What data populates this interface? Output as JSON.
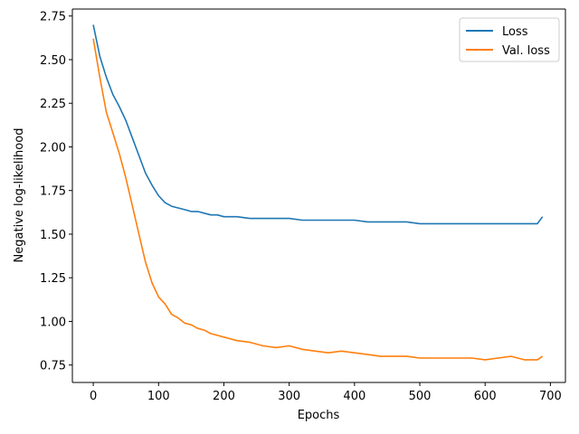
{
  "chart_data": {
    "type": "line",
    "title": "",
    "xlabel": "Epochs",
    "ylabel": "Negative log-likelihood",
    "xlim": [
      -32,
      723
    ],
    "ylim": [
      0.65,
      2.79
    ],
    "x_ticks": [
      0,
      100,
      200,
      300,
      400,
      500,
      600,
      700
    ],
    "y_ticks": [
      0.75,
      1.0,
      1.25,
      1.5,
      1.75,
      2.0,
      2.25,
      2.5,
      2.75
    ],
    "y_tick_labels": [
      "0.75",
      "1.00",
      "1.25",
      "1.50",
      "1.75",
      "2.00",
      "2.25",
      "2.50",
      "2.75"
    ],
    "legend_position": "top-right",
    "series": [
      {
        "name": "Loss",
        "color": "#1f77b4",
        "x": [
          0,
          10,
          20,
          30,
          40,
          50,
          60,
          70,
          80,
          90,
          100,
          110,
          120,
          130,
          140,
          150,
          160,
          170,
          180,
          190,
          200,
          220,
          240,
          260,
          280,
          300,
          320,
          340,
          360,
          380,
          400,
          420,
          440,
          460,
          480,
          500,
          520,
          540,
          560,
          580,
          600,
          620,
          640,
          660,
          680,
          688
        ],
        "y": [
          2.7,
          2.52,
          2.4,
          2.3,
          2.23,
          2.15,
          2.05,
          1.95,
          1.85,
          1.78,
          1.72,
          1.68,
          1.66,
          1.65,
          1.64,
          1.63,
          1.63,
          1.62,
          1.61,
          1.61,
          1.6,
          1.6,
          1.59,
          1.59,
          1.59,
          1.59,
          1.58,
          1.58,
          1.58,
          1.58,
          1.58,
          1.57,
          1.57,
          1.57,
          1.57,
          1.56,
          1.56,
          1.56,
          1.56,
          1.56,
          1.56,
          1.56,
          1.56,
          1.56,
          1.56,
          1.6
        ]
      },
      {
        "name": "Val. loss",
        "color": "#ff7f0e",
        "x": [
          0,
          10,
          20,
          30,
          40,
          50,
          60,
          70,
          80,
          90,
          100,
          110,
          120,
          130,
          140,
          150,
          160,
          170,
          180,
          190,
          200,
          220,
          240,
          260,
          280,
          300,
          320,
          340,
          360,
          380,
          400,
          420,
          440,
          460,
          480,
          500,
          520,
          540,
          560,
          580,
          600,
          620,
          640,
          660,
          680,
          688
        ],
        "y": [
          2.62,
          2.4,
          2.2,
          2.08,
          1.96,
          1.82,
          1.66,
          1.5,
          1.34,
          1.22,
          1.14,
          1.1,
          1.04,
          1.02,
          0.99,
          0.98,
          0.96,
          0.95,
          0.93,
          0.92,
          0.91,
          0.89,
          0.88,
          0.86,
          0.85,
          0.86,
          0.84,
          0.83,
          0.82,
          0.83,
          0.82,
          0.81,
          0.8,
          0.8,
          0.8,
          0.79,
          0.79,
          0.79,
          0.79,
          0.79,
          0.78,
          0.79,
          0.8,
          0.78,
          0.78,
          0.8
        ]
      }
    ]
  }
}
